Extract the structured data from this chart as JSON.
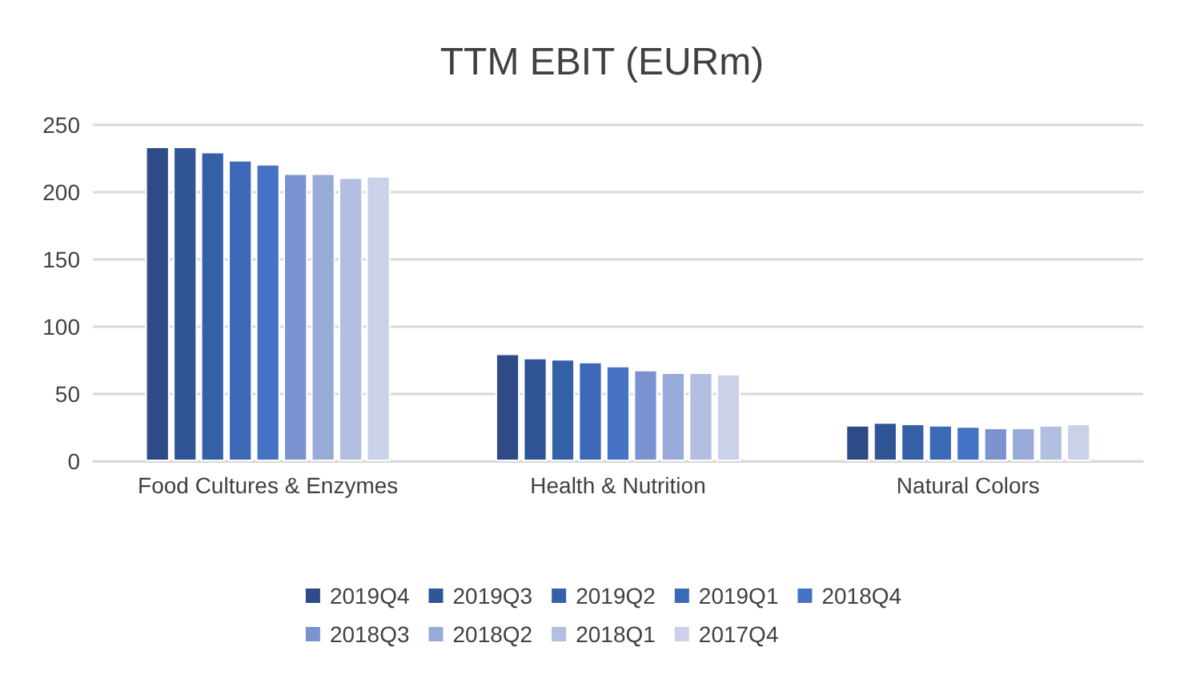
{
  "chart_data": {
    "type": "bar",
    "title": "TTM EBIT (EURm)",
    "categories": [
      "Food Cultures & Enzymes",
      "Health & Nutrition",
      "Natural Colors"
    ],
    "series": [
      {
        "name": "2019Q4",
        "color": "#2e4a87",
        "values": [
          234,
          80,
          27
        ]
      },
      {
        "name": "2019Q3",
        "color": "#2f5597",
        "values": [
          234,
          77,
          29
        ]
      },
      {
        "name": "2019Q2",
        "color": "#3560a8",
        "values": [
          230,
          76,
          28
        ]
      },
      {
        "name": "2019Q1",
        "color": "#3c68b8",
        "values": [
          224,
          74,
          27
        ]
      },
      {
        "name": "2018Q4",
        "color": "#4472c4",
        "values": [
          221,
          71,
          26
        ]
      },
      {
        "name": "2018Q3",
        "color": "#7a93d0",
        "values": [
          214,
          68,
          25
        ]
      },
      {
        "name": "2018Q2",
        "color": "#98abd8",
        "values": [
          214,
          66,
          25
        ]
      },
      {
        "name": "2018Q1",
        "color": "#b3bfe0",
        "values": [
          211,
          66,
          27
        ]
      },
      {
        "name": "2017Q4",
        "color": "#cad1e8",
        "values": [
          212,
          65,
          28
        ]
      }
    ],
    "ylim": [
      0,
      250
    ],
    "yticks": [
      0,
      50,
      100,
      150,
      200,
      250
    ],
    "grid": "y",
    "legend": "bottom"
  }
}
